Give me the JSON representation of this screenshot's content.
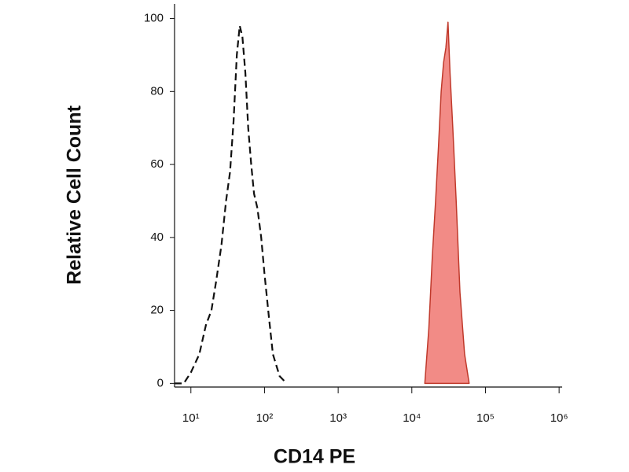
{
  "chart_data": {
    "type": "histogram-line",
    "xlabel": "CD14 PE",
    "ylabel": "Relative Cell Count",
    "xscale": "log",
    "xlim": [
      6,
      1100000
    ],
    "ylim": [
      -1,
      104
    ],
    "xticks": [
      {
        "value": 10,
        "label": "10¹"
      },
      {
        "value": 100,
        "label": "10²"
      },
      {
        "value": 1000,
        "label": "10³"
      },
      {
        "value": 10000,
        "label": "10⁴"
      },
      {
        "value": 100000,
        "label": "10⁵"
      },
      {
        "value": 1000000,
        "label": "10⁶"
      }
    ],
    "yticks": [
      0,
      20,
      40,
      60,
      80,
      100
    ],
    "series": [
      {
        "color": "#111111",
        "dashed": true,
        "filled": false,
        "x": [
          6,
          8,
          10,
          13,
          16,
          19,
          22,
          26,
          30,
          34,
          38,
          42,
          46,
          50,
          55,
          60,
          66,
          72,
          80,
          90,
          100,
          115,
          130,
          160,
          200
        ],
        "values": [
          0,
          0,
          3,
          8,
          16,
          20,
          28,
          38,
          50,
          58,
          72,
          90,
          98,
          95,
          85,
          70,
          60,
          52,
          48,
          40,
          30,
          18,
          8,
          2,
          0
        ]
      },
      {
        "color": "#c0392b",
        "fill": "#f28b86",
        "dashed": false,
        "filled": true,
        "x": [
          15000,
          17000,
          19000,
          21000,
          23000,
          25000,
          27000,
          29000,
          31000,
          33000,
          36000,
          40000,
          45000,
          52000,
          60000
        ],
        "values": [
          0,
          15,
          35,
          50,
          65,
          80,
          88,
          92,
          99,
          85,
          70,
          50,
          25,
          8,
          0
        ]
      }
    ]
  }
}
